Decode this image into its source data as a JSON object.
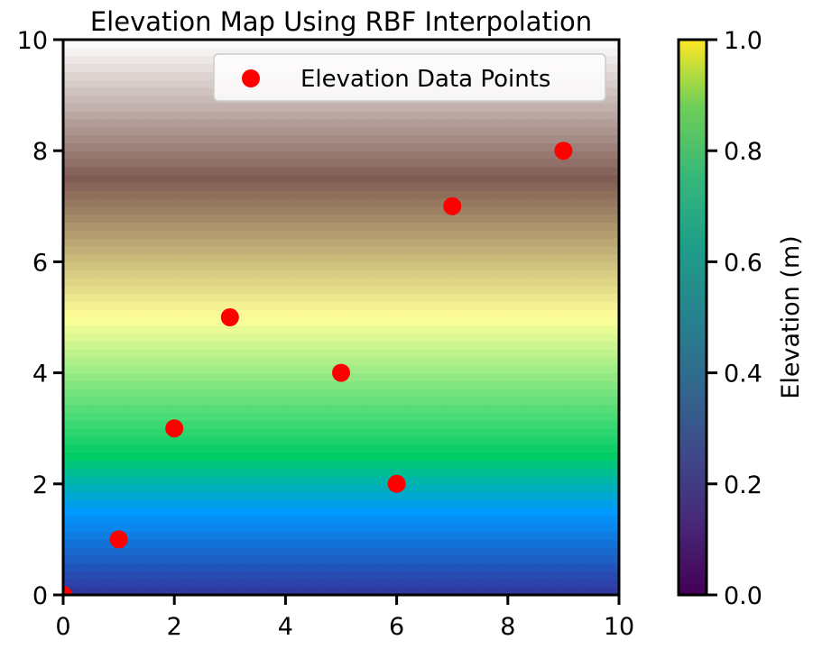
{
  "chart_data": {
    "type": "heatmap",
    "title": "Elevation Map Using RBF Interpolation",
    "xlabel": "",
    "ylabel": "",
    "xlim": [
      0,
      10
    ],
    "ylim": [
      0,
      10
    ],
    "x_ticks": [
      "0",
      "2",
      "4",
      "6",
      "8",
      "10"
    ],
    "y_ticks": [
      "0",
      "2",
      "4",
      "6",
      "8",
      "10"
    ],
    "grid": false,
    "colormap_background": "terrain",
    "legend": {
      "placement": "upper right",
      "entries": [
        "Elevation Data Points"
      ]
    },
    "series": [
      {
        "name": "Elevation Data Points",
        "type": "scatter",
        "color": "#ff0000",
        "x": [
          0,
          1,
          2,
          3,
          5,
          6,
          7,
          9
        ],
        "y": [
          0,
          1,
          3,
          5,
          4,
          2,
          7,
          8
        ]
      }
    ],
    "colorbar": {
      "label": "Elevation (m)",
      "colormap": "viridis",
      "range": [
        0,
        1
      ],
      "ticks": [
        "0.0",
        "0.2",
        "0.4",
        "0.6",
        "0.8",
        "1.0"
      ]
    }
  }
}
